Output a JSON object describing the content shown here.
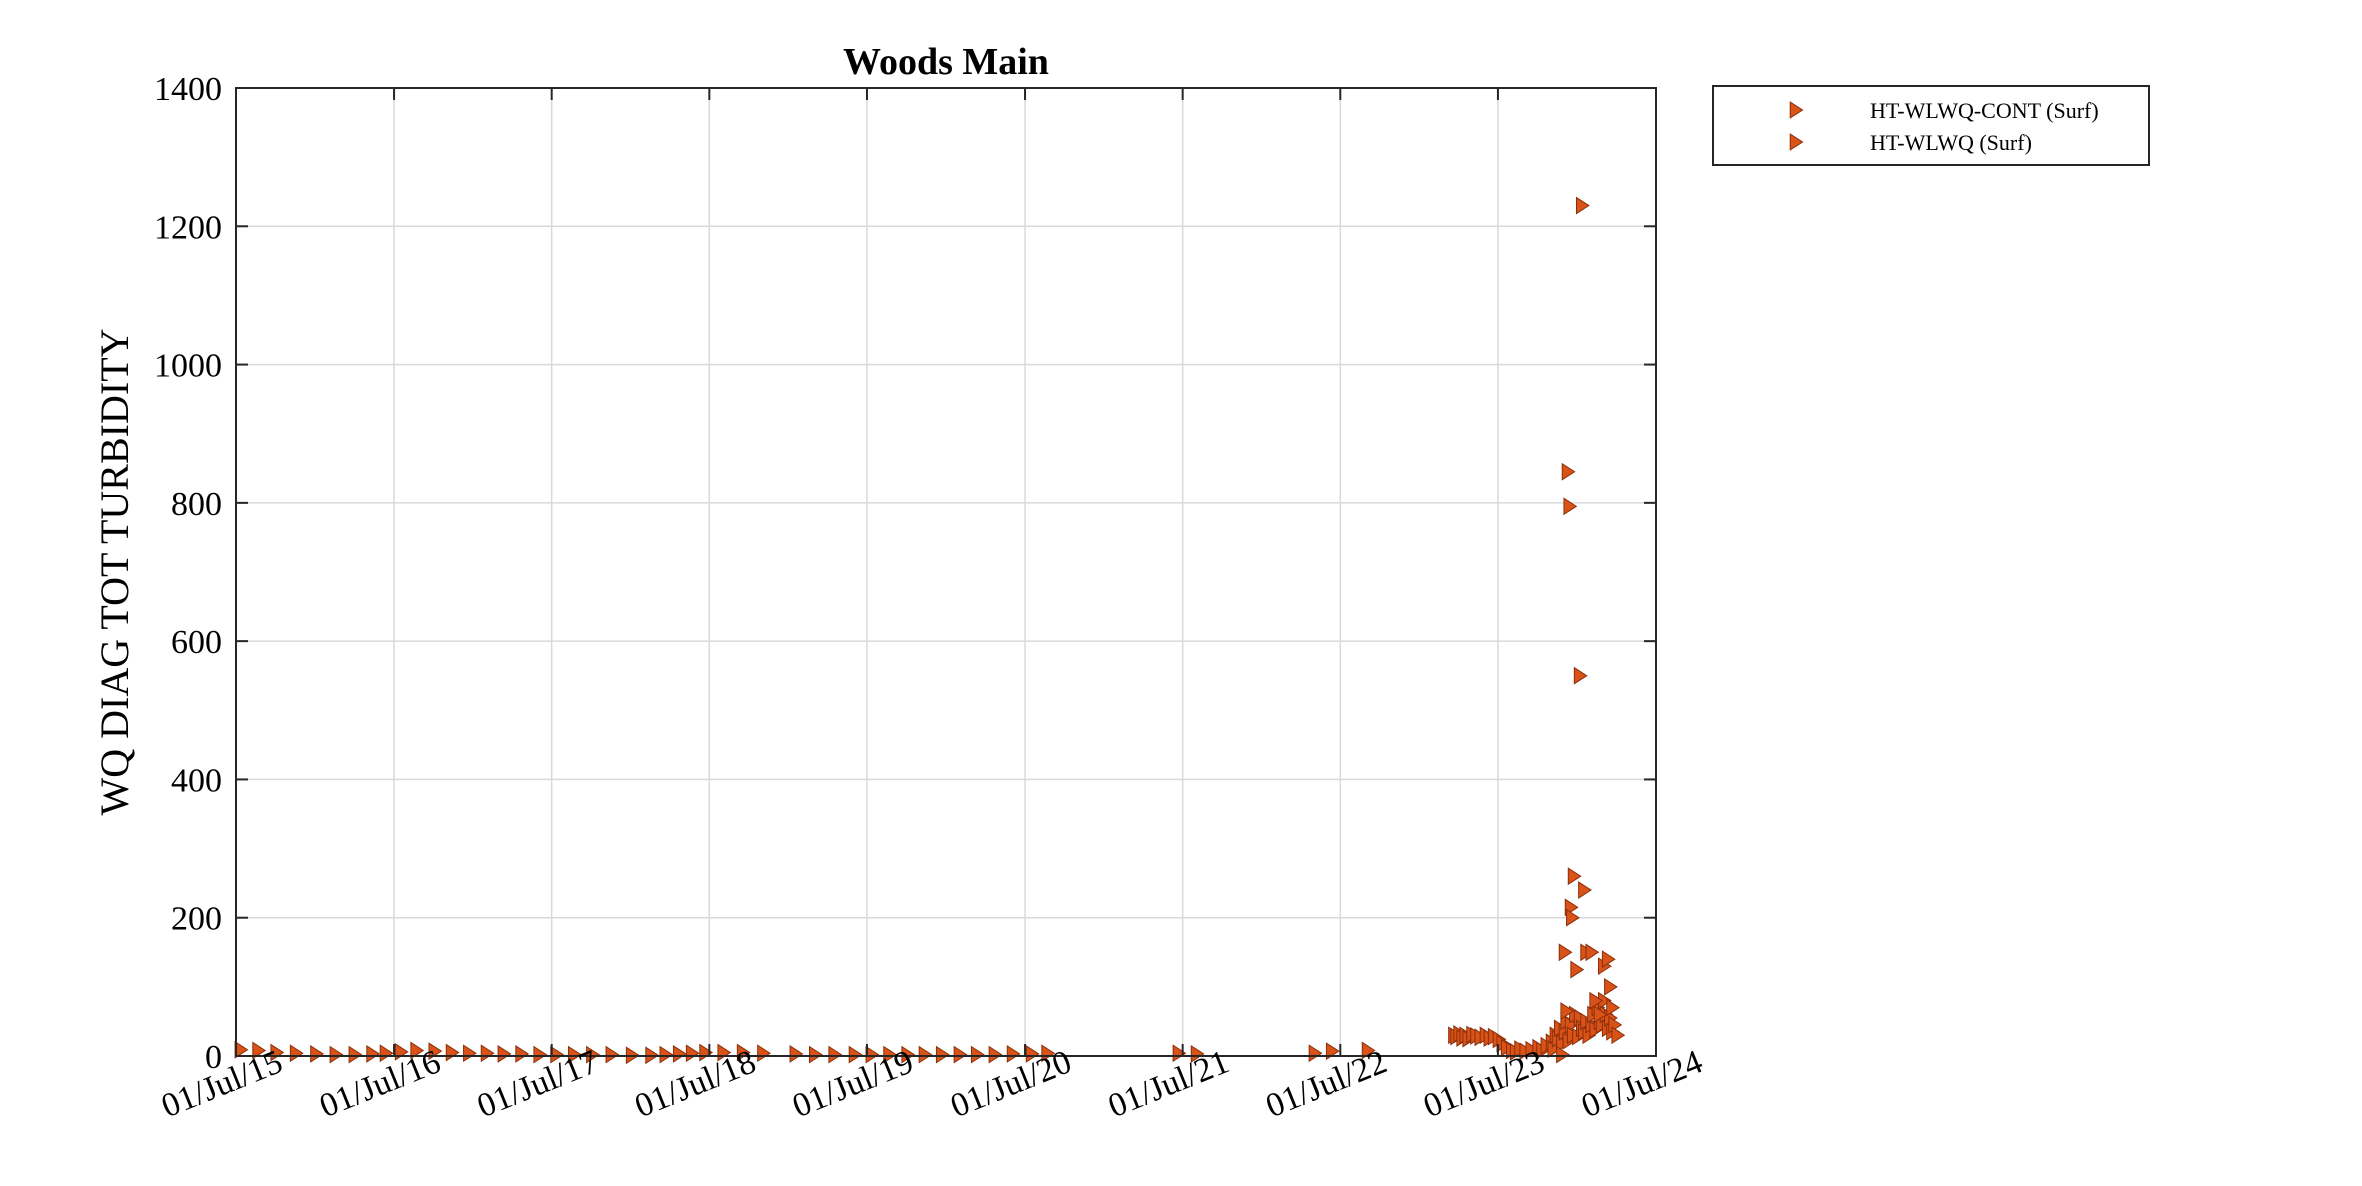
{
  "chart_data": {
    "type": "scatter",
    "title": "Woods Main",
    "xlabel": "",
    "ylabel": "WQ DIAG TOT TURBIDITY",
    "x_axis_type": "date",
    "xlim": [
      "2015-07-01",
      "2024-07-01"
    ],
    "ylim": [
      0,
      1400
    ],
    "x_ticks": [
      "2015-07-01",
      "2016-07-01",
      "2017-07-01",
      "2018-07-01",
      "2019-07-01",
      "2020-07-01",
      "2021-07-01",
      "2022-07-01",
      "2023-07-01",
      "2024-07-01"
    ],
    "x_tick_labels": [
      "01/Jul/15",
      "01/Jul/16",
      "01/Jul/17",
      "01/Jul/18",
      "01/Jul/19",
      "01/Jul/20",
      "01/Jul/21",
      "01/Jul/22",
      "01/Jul/23",
      "01/Jul/24"
    ],
    "y_ticks": [
      0,
      200,
      400,
      600,
      800,
      1000,
      1200,
      1400
    ],
    "y_tick_labels": [
      "0",
      "200",
      "400",
      "600",
      "800",
      "1000",
      "1200",
      "1400"
    ],
    "grid": true,
    "legend_position": "outside-top-right",
    "marker": "triangle-right",
    "series": [
      {
        "name": "HT-WLWQ-CONT (Surf)",
        "color": "#D95319",
        "x": [
          "2023-03-20",
          "2023-03-25",
          "2023-04-01",
          "2023-04-08",
          "2023-04-15",
          "2023-04-22",
          "2023-05-01",
          "2023-05-10",
          "2023-05-20",
          "2023-06-01",
          "2023-06-10",
          "2023-06-20",
          "2023-07-01",
          "2023-07-10",
          "2023-07-20",
          "2023-08-01",
          "2023-08-10",
          "2023-08-20",
          "2023-09-01",
          "2023-09-15",
          "2023-10-01",
          "2023-10-10",
          "2023-10-20",
          "2023-11-01",
          "2023-11-05",
          "2023-11-10",
          "2023-11-15",
          "2023-11-20",
          "2023-11-25",
          "2023-12-01",
          "2023-12-05",
          "2023-12-10",
          "2023-12-15",
          "2023-12-20",
          "2023-12-25",
          "2024-01-01",
          "2024-01-05",
          "2024-01-10",
          "2024-01-15",
          "2024-01-20",
          "2024-01-25",
          "2024-02-01",
          "2024-02-05",
          "2024-02-10",
          "2024-02-15",
          "2024-02-20",
          "2024-02-25",
          "2024-03-01",
          "2024-03-05",
          "2024-03-10",
          "2024-03-15",
          "2024-03-20",
          "2024-03-25",
          "2024-04-01"
        ],
        "y": [
          30,
          28,
          32,
          26,
          30,
          25,
          31,
          29,
          27,
          30,
          26,
          28,
          24,
          18,
          12,
          8,
          6,
          10,
          7,
          9,
          12,
          8,
          15,
          20,
          10,
          30,
          25,
          40,
          18,
          35,
          50,
          22,
          45,
          30,
          60,
          28,
          55,
          40,
          35,
          50,
          30,
          45,
          60,
          38,
          70,
          50,
          45,
          80,
          60,
          40,
          55,
          35,
          45,
          30
        ]
      },
      {
        "name": "HT-WLWQ (Surf)",
        "color": "#D95319",
        "x": [
          "2015-07-10",
          "2015-08-20",
          "2015-10-01",
          "2015-11-15",
          "2016-01-01",
          "2016-02-15",
          "2016-03-30",
          "2016-05-10",
          "2016-06-10",
          "2016-07-15",
          "2016-08-20",
          "2016-10-01",
          "2016-11-10",
          "2016-12-20",
          "2017-01-30",
          "2017-03-10",
          "2017-04-20",
          "2017-06-01",
          "2017-07-10",
          "2017-08-20",
          "2017-10-01",
          "2017-11-15",
          "2018-01-01",
          "2018-02-15",
          "2018-03-20",
          "2018-04-20",
          "2018-05-20",
          "2018-06-20",
          "2018-08-01",
          "2018-09-15",
          "2018-11-01",
          "2019-01-15",
          "2019-03-01",
          "2019-04-15",
          "2019-06-01",
          "2019-07-10",
          "2019-08-20",
          "2019-10-01",
          "2019-11-10",
          "2019-12-20",
          "2020-01-30",
          "2020-03-10",
          "2020-04-20",
          "2020-06-01",
          "2020-07-15",
          "2020-08-20",
          "2021-06-20",
          "2021-08-01",
          "2022-05-01",
          "2022-06-10",
          "2022-09-01",
          "2023-11-25",
          "2023-12-01",
          "2023-12-05",
          "2023-12-08",
          "2023-12-12",
          "2023-12-15",
          "2023-12-18",
          "2023-12-22",
          "2023-12-28",
          "2024-01-05",
          "2024-01-10",
          "2024-01-15",
          "2024-01-20",
          "2024-02-01",
          "2024-02-10",
          "2024-02-20",
          "2024-03-01",
          "2024-03-10",
          "2024-03-15",
          "2024-03-20"
        ],
        "y": [
          9,
          8,
          5,
          4,
          3,
          2,
          2,
          3,
          4,
          6,
          8,
          7,
          5,
          4,
          4,
          3,
          3,
          2,
          2,
          2,
          2,
          2,
          1,
          1,
          2,
          3,
          4,
          5,
          5,
          5,
          4,
          3,
          2,
          2,
          2,
          2,
          2,
          2,
          2,
          2,
          2,
          2,
          2,
          3,
          3,
          4,
          4,
          3,
          4,
          7,
          8,
          2,
          150,
          65,
          845,
          795,
          215,
          200,
          260,
          125,
          550,
          1230,
          240,
          150,
          150,
          80,
          60,
          130,
          140,
          100,
          70
        ]
      }
    ]
  }
}
